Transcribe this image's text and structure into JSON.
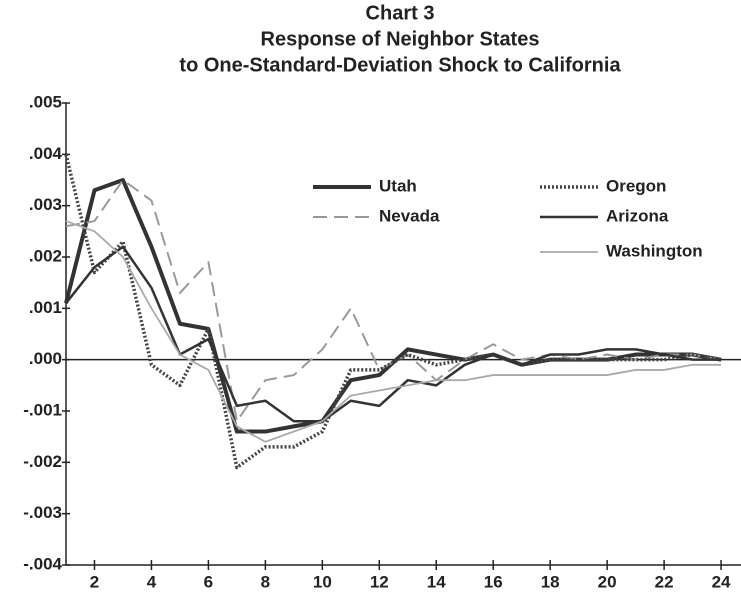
{
  "chart_data": {
    "type": "line",
    "title": [
      "Chart 3",
      "Response of Neighbor States",
      "to One-Standard-Deviation Shock to California"
    ],
    "x": [
      1,
      2,
      3,
      4,
      5,
      6,
      7,
      8,
      9,
      10,
      11,
      12,
      13,
      14,
      15,
      16,
      17,
      18,
      19,
      20,
      21,
      22,
      23,
      24
    ],
    "xlim": [
      1,
      24.7
    ],
    "xticks": [
      2,
      4,
      6,
      8,
      10,
      12,
      14,
      16,
      18,
      20,
      22,
      24
    ],
    "ylim": [
      -0.004,
      0.005
    ],
    "yticks": [
      {
        "value": 0.005,
        "label": ".005"
      },
      {
        "value": 0.004,
        "label": ".004"
      },
      {
        "value": 0.003,
        "label": ".003"
      },
      {
        "value": 0.002,
        "label": ".002"
      },
      {
        "value": 0.001,
        "label": ".001"
      },
      {
        "value": 0,
        "label": ".000"
      },
      {
        "value": -0.001,
        "label": "-.001"
      },
      {
        "value": -0.002,
        "label": "-.002"
      },
      {
        "value": -0.003,
        "label": "-.003"
      },
      {
        "value": -0.004,
        "label": "-.004"
      }
    ],
    "series": [
      {
        "name": "Utah",
        "color": "#333333",
        "style": "thick",
        "values": [
          0.0011,
          0.0033,
          0.0035,
          0.0022,
          0.0007,
          0.0006,
          -0.0014,
          -0.0014,
          -0.0013,
          -0.0012,
          -0.0004,
          -0.0003,
          0.0002,
          0.0001,
          0.0,
          0.0001,
          -0.0001,
          0.0,
          0.0,
          0.0,
          0.0001,
          0.0001,
          0.0001,
          0.0
        ]
      },
      {
        "name": "Nevada",
        "color": "#999999",
        "style": "dashed",
        "values": [
          0.0026,
          0.0027,
          0.0035,
          0.0031,
          0.0013,
          0.0019,
          -0.0012,
          -0.0004,
          -0.0003,
          0.0002,
          0.001,
          -0.0002,
          0.0001,
          -0.0004,
          0.0,
          0.0003,
          0.0,
          0.0001,
          0.0,
          0.0001,
          0.0,
          0.0001,
          0.0001,
          0.0
        ]
      },
      {
        "name": "Oregon",
        "color": "#444444",
        "style": "dotted",
        "values": [
          0.004,
          0.0017,
          0.0023,
          -0.0001,
          -0.0005,
          0.0006,
          -0.0021,
          -0.0017,
          -0.0017,
          -0.0014,
          -0.0002,
          -0.0002,
          0.0001,
          -0.0001,
          0.0,
          0.0001,
          -0.0001,
          0.0,
          0.0,
          0.0,
          0.0,
          0.0,
          0.0001,
          0.0
        ]
      },
      {
        "name": "Arizona",
        "color": "#333333",
        "style": "solid",
        "values": [
          0.0011,
          0.0018,
          0.0022,
          0.0014,
          0.0001,
          0.0004,
          -0.0009,
          -0.0008,
          -0.0012,
          -0.0012,
          -0.0008,
          -0.0009,
          -0.0004,
          -0.0005,
          -0.0001,
          0.0001,
          -0.0001,
          0.0001,
          0.0001,
          0.0002,
          0.0002,
          0.0001,
          0.0,
          0.0
        ]
      },
      {
        "name": "Washington",
        "color": "#aaaaaa",
        "style": "thin",
        "values": [
          0.0027,
          0.0025,
          0.002,
          0.001,
          0.0001,
          -0.0002,
          -0.0013,
          -0.0016,
          -0.0014,
          -0.0012,
          -0.0007,
          -0.0006,
          -0.0005,
          -0.0004,
          -0.0004,
          -0.0003,
          -0.0003,
          -0.0003,
          -0.0003,
          -0.0003,
          -0.0002,
          -0.0002,
          -0.0001,
          -0.0001
        ]
      }
    ]
  }
}
